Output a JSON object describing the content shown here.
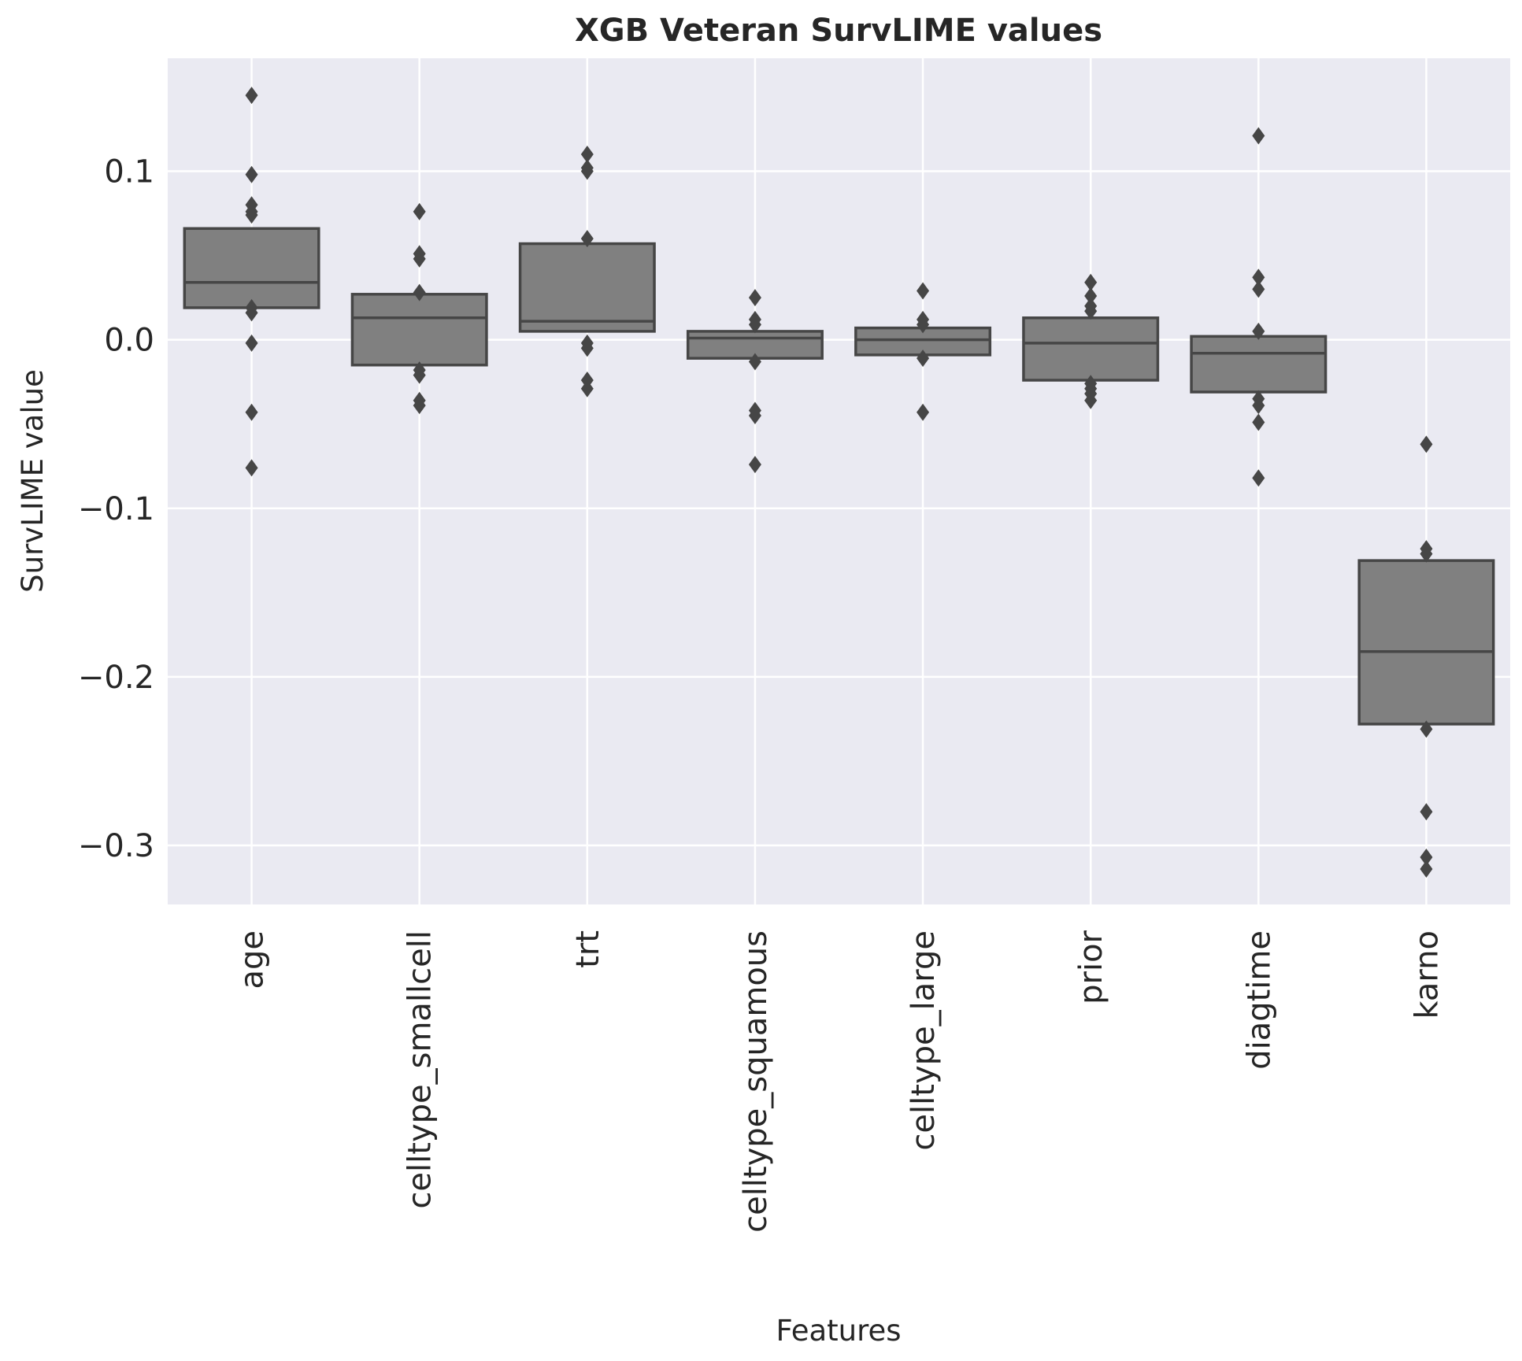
{
  "chart_data": {
    "type": "box",
    "title": "XGB Veteran SurvLIME values",
    "xlabel": "Features",
    "ylabel": "SurvLIME value",
    "ylim": [
      -0.335,
      0.167
    ],
    "yticks": [
      0.1,
      0.0,
      -0.1,
      -0.2,
      -0.3
    ],
    "ytick_labels": [
      "0.1",
      "0.0",
      "−0.1",
      "−0.2",
      "−0.3"
    ],
    "grid": true,
    "categories": [
      "age",
      "celltype_smallcell",
      "trt",
      "celltype_squamous",
      "celltype_large",
      "prior",
      "diagtime",
      "karno"
    ],
    "boxes": [
      {
        "q1": 0.019,
        "median": 0.034,
        "q3": 0.066,
        "outliers": [
          0.145,
          0.098,
          0.08,
          0.076,
          0.074,
          0.019,
          0.016,
          -0.002,
          -0.043,
          -0.076
        ]
      },
      {
        "q1": -0.015,
        "median": 0.013,
        "q3": 0.027,
        "outliers": [
          0.076,
          0.051,
          0.048,
          0.028,
          -0.018,
          -0.021,
          -0.036,
          -0.039
        ]
      },
      {
        "q1": 0.005,
        "median": 0.011,
        "q3": 0.057,
        "outliers": [
          0.11,
          0.102,
          0.1,
          0.06,
          -0.002,
          -0.005,
          -0.024,
          -0.029
        ]
      },
      {
        "q1": -0.011,
        "median": 0.001,
        "q3": 0.005,
        "outliers": [
          0.025,
          0.012,
          0.009,
          -0.013,
          -0.042,
          -0.045,
          -0.074
        ]
      },
      {
        "q1": -0.009,
        "median": 0.0,
        "q3": 0.007,
        "outliers": [
          0.029,
          0.012,
          0.009,
          -0.011,
          -0.043
        ]
      },
      {
        "q1": -0.024,
        "median": -0.002,
        "q3": 0.013,
        "outliers": [
          0.034,
          0.026,
          0.02,
          0.017,
          -0.026,
          -0.029,
          -0.032,
          -0.036
        ]
      },
      {
        "q1": -0.031,
        "median": -0.008,
        "q3": 0.002,
        "outliers": [
          0.121,
          0.037,
          0.03,
          0.005,
          -0.035,
          -0.039,
          -0.049,
          -0.082
        ]
      },
      {
        "q1": -0.228,
        "median": -0.185,
        "q3": -0.131,
        "outliers": [
          -0.062,
          -0.124,
          -0.127,
          -0.231,
          -0.28,
          -0.307,
          -0.314
        ]
      }
    ],
    "colors": {
      "box_fill": "#808080",
      "box_edge": "#464646",
      "plot_bg": "#eaeaf2",
      "grid": "#ffffff",
      "text": "#262626"
    }
  }
}
